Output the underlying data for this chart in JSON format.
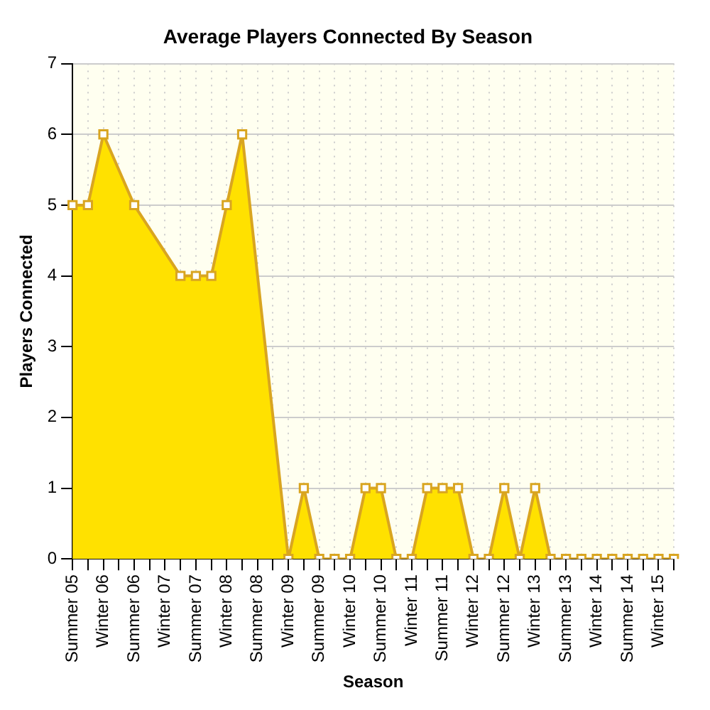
{
  "chart_data": {
    "type": "area",
    "title": "Average Players Connected By Season",
    "xlabel": "Season",
    "ylabel": "Players Connected",
    "categories": [
      "Summer 05",
      null,
      "Winter 06",
      null,
      "Summer 06",
      null,
      "Winter 07",
      null,
      "Summer 07",
      null,
      "Winter 08",
      null,
      "Summer 08",
      null,
      "Winter 09",
      null,
      "Summer 09",
      null,
      "Winter 10",
      null,
      "Summer 10",
      null,
      "Winter 11",
      null,
      "Summer 11",
      null,
      "Winter 12",
      null,
      "Summer 12",
      null,
      "Winter 13",
      null,
      "Summer 13",
      null,
      "Winter 14",
      null,
      "Summer 14",
      null,
      "Winter 15",
      null
    ],
    "series": [
      {
        "color": "#ffe100",
        "values": [
          5,
          5,
          6,
          null,
          5,
          null,
          null,
          4,
          4,
          4,
          5,
          6,
          null,
          null,
          0,
          1,
          0,
          0,
          0,
          1,
          1,
          0,
          0,
          1,
          1,
          1,
          0,
          0,
          1,
          0,
          1,
          0,
          0,
          0,
          0,
          0,
          0,
          0,
          0,
          0
        ]
      }
    ],
    "ylim": [
      0,
      7
    ],
    "yticks": [
      0,
      1,
      2,
      3,
      4,
      5,
      6,
      7
    ],
    "grid": true,
    "marker": "square"
  }
}
